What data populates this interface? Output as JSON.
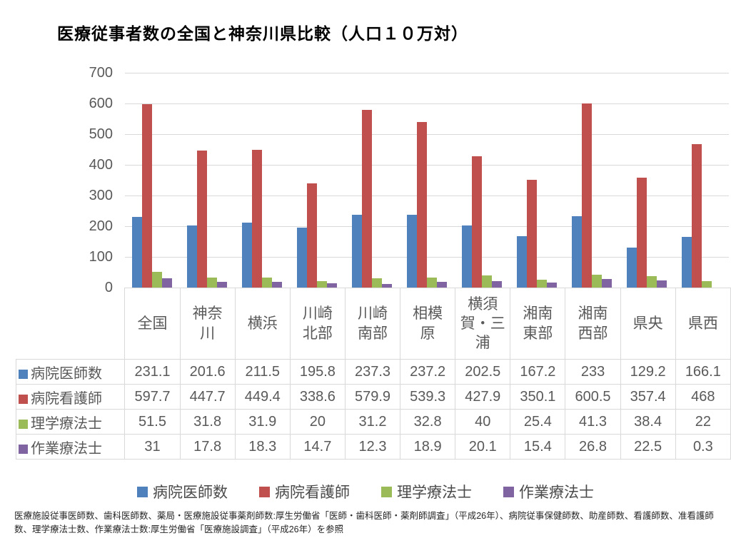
{
  "title": "医療従事者数の全国と神奈川県比較（人口１０万対）",
  "footnote": "医療施設従事医師数、歯科医師数、薬局・医療施設従事薬剤師数:厚生労働省「医師・歯科医師・薬剤師調査」（平成26年）、病院従事保健師数、助産師数、看護師数、准看護師数、理学療法士数、作業療法士数:厚生労働省「医療施設調査」（平成26年）を参照",
  "chart_data": {
    "type": "bar",
    "title": "医療従事者数の全国と神奈川県比較（人口１０万対）",
    "categories": [
      "全国",
      "神奈川",
      "横浜",
      "川崎北部",
      "川崎南部",
      "相模原",
      "横須賀・三浦",
      "湘南東部",
      "湘南西部",
      "県央",
      "県西"
    ],
    "category_display_lines": [
      [
        "全国"
      ],
      [
        "神奈",
        "川"
      ],
      [
        "横浜"
      ],
      [
        "川崎",
        "北部"
      ],
      [
        "川崎",
        "南部"
      ],
      [
        "相模",
        "原"
      ],
      [
        "横須",
        "賀・三",
        "浦"
      ],
      [
        "湘南",
        "東部"
      ],
      [
        "湘南",
        "西部"
      ],
      [
        "県央"
      ],
      [
        "県西"
      ]
    ],
    "series": [
      {
        "name": "病院医師数",
        "color": "#4F81BD",
        "values": [
          231.1,
          201.6,
          211.5,
          195.8,
          237.3,
          237.2,
          202.5,
          167.2,
          233,
          129.2,
          166.1
        ]
      },
      {
        "name": "病院看護師",
        "color": "#C0504D",
        "values": [
          597.7,
          447.7,
          449.4,
          338.6,
          579.9,
          539.3,
          427.9,
          350.1,
          600.5,
          357.4,
          468
        ]
      },
      {
        "name": "理学療法士",
        "color": "#9BBB59",
        "values": [
          51.5,
          31.8,
          31.9,
          20,
          31.2,
          32.8,
          40,
          25.4,
          41.3,
          38.4,
          22
        ]
      },
      {
        "name": "作業療法士",
        "color": "#8064A2",
        "values": [
          31,
          17.8,
          18.3,
          14.7,
          12.3,
          18.9,
          20.1,
          15.4,
          26.8,
          22.5,
          0.3
        ]
      }
    ],
    "ylim": [
      0,
      700
    ],
    "yticks": [
      0,
      100,
      200,
      300,
      400,
      500,
      600,
      700
    ],
    "grid": true,
    "legend_position": "bottom",
    "data_table_shown": true,
    "gridline_color": "#d9d9d9",
    "axis_text_color": "#595959"
  }
}
